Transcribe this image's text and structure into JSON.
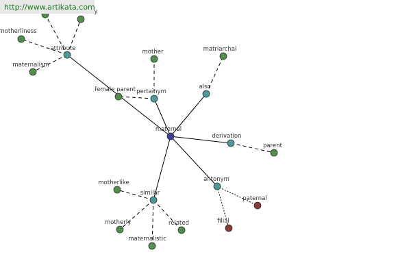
{
  "watermark": "http://www.artikata.com",
  "nodes": [
    {
      "label": "maternal"
    },
    {
      "label": "attribute"
    },
    {
      "label": "motherliness"
    },
    {
      "label": "maternalism"
    },
    {
      "label": "y"
    },
    {
      "label": "female parent"
    },
    {
      "label": "pertainym"
    },
    {
      "label": "mother"
    },
    {
      "label": "also"
    },
    {
      "label": "matriarchal"
    },
    {
      "label": "derivation"
    },
    {
      "label": "parent"
    },
    {
      "label": "antonym"
    },
    {
      "label": "paternal"
    },
    {
      "label": "filial"
    },
    {
      "label": "similar"
    },
    {
      "label": "motherlike"
    },
    {
      "label": "motherly"
    },
    {
      "label": "maternalistic"
    },
    {
      "label": "related"
    }
  ]
}
